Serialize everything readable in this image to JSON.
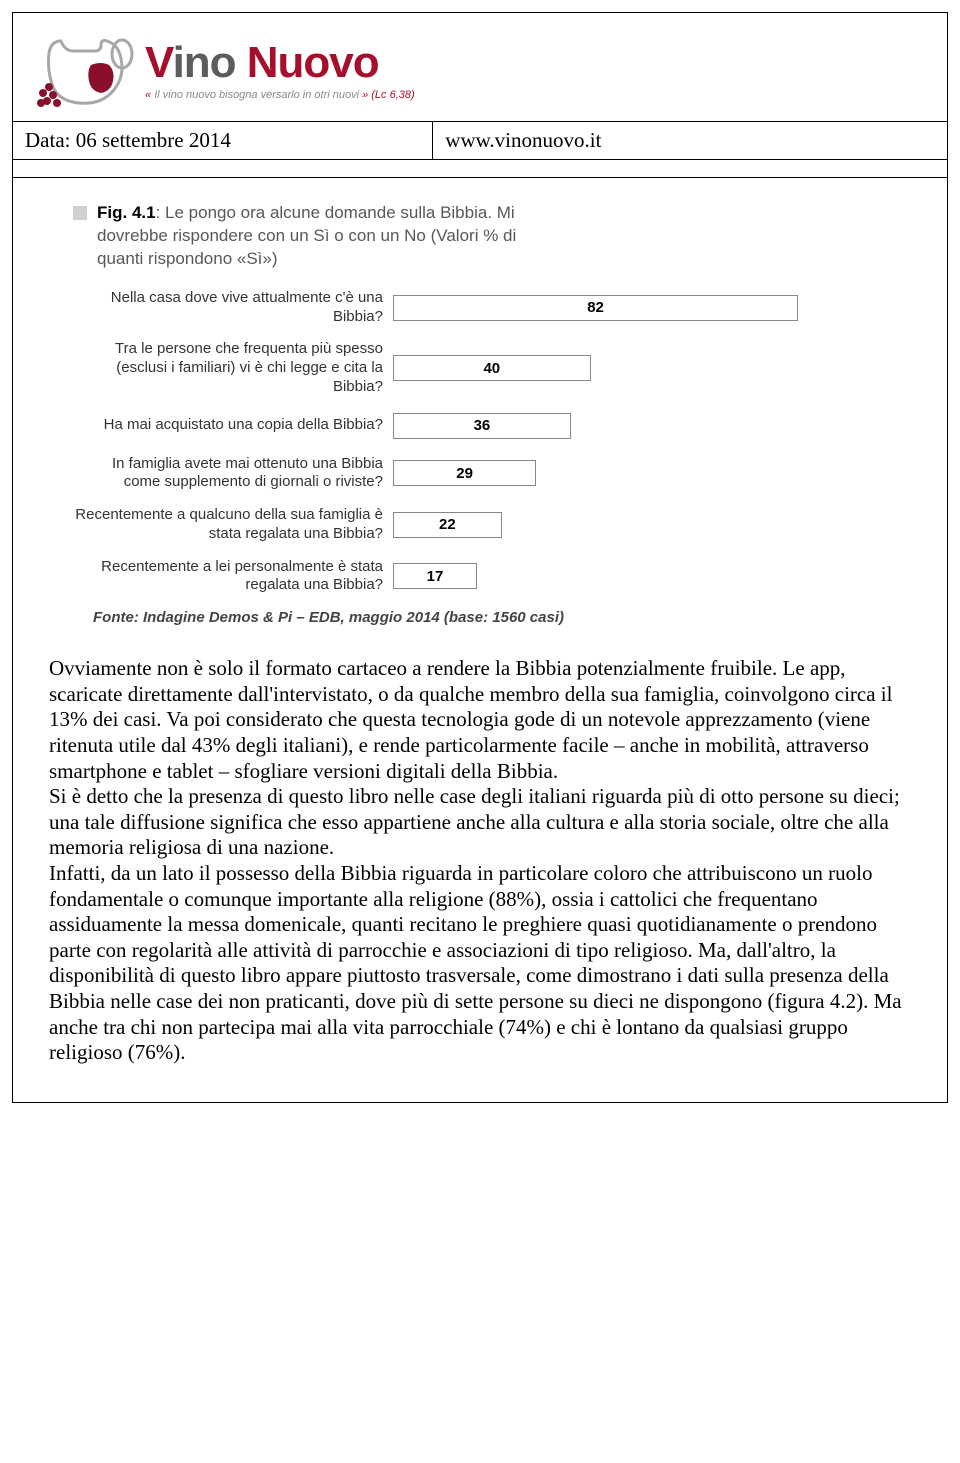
{
  "header": {
    "logo_v": "V",
    "logo_ino": "ino ",
    "logo_nuovo": "Nuovo",
    "tagline_prefix": "« ",
    "tagline": "Il vino nuovo bisogna versarlo in otri nuovi",
    "tagline_suffix": " » (Lc 6,38)",
    "date_label": "Data: 06 settembre 2014",
    "url_label": "www.vinonuovo.it"
  },
  "chart": {
    "caption_fig": "Fig. 4.1",
    "caption_rest": ": Le pongo ora alcune domande sulla Bibbia. Mi dovrebbe rispondere con un Sì o con un No (Valori % di quanti rispondono «Sì»)",
    "max_value": 100,
    "bar_border_color": "#888888",
    "bar_fill_color": "#ffffff",
    "bar_widths_pct": [
      82,
      40,
      36,
      29,
      22,
      17
    ],
    "rows": [
      {
        "label": "Nella casa dove vive attualmente c'è una Bibbia?",
        "value": 82
      },
      {
        "label": "Tra le persone che frequenta più spesso (esclusi i familiari) vi è chi legge e cita la Bibbia?",
        "value": 40
      },
      {
        "label": "Ha mai acquistato una copia della Bibbia?",
        "value": 36
      },
      {
        "label": "In famiglia avete mai ottenuto una Bibbia come supplemento di giornali o riviste?",
        "value": 29
      },
      {
        "label": "Recentemente a qualcuno della sua famiglia è stata regalata una Bibbia?",
        "value": 22
      },
      {
        "label": "Recentemente a lei personalmente è stata regalata una Bibbia?",
        "value": 17
      }
    ],
    "source_prefix": "Fonte: ",
    "source": "Indagine Demos & Pi – EDB, maggio 2014 (base: 1560 casi)"
  },
  "body": "Ovviamente non è solo il formato cartaceo a rendere la Bibbia potenzialmente fruibile. Le app, scaricate direttamente dall'intervistato, o da qualche membro della sua famiglia, coinvolgono circa il 13% dei casi. Va poi considerato che questa tecnologia gode di un notevole apprezzamento (viene ritenuta utile dal 43% degli italiani), e rende particolarmente facile – anche in mobilità, attraverso smartphone e tablet – sfogliare versioni digitali della Bibbia.\nSi è detto che la presenza di questo libro nelle case degli italiani riguarda più di otto persone su dieci; una tale diffusione significa che esso appartiene anche alla cultura e alla storia sociale, oltre che alla memoria religiosa di una nazione.\nInfatti, da un lato il possesso della Bibbia riguarda in particolare coloro che attribuiscono un ruolo fondamentale o comunque importante alla religione (88%), ossia i cattolici che frequentano assiduamente la messa domenicale, quanti recitano le preghiere quasi quotidianamente o prendono parte con regolarità alle attività di parrocchie e associazioni di tipo religioso. Ma, dall'altro, la disponibilità di questo libro appare piuttosto trasversale, come dimostrano i dati sulla presenza della Bibbia nelle case dei non praticanti, dove più di sette persone su dieci ne dispongono (figura 4.2). Ma anche tra chi non partecipa mai alla vita parrocchiale (74%) e chi è lontano da qualsiasi gruppo religioso (76%)."
}
